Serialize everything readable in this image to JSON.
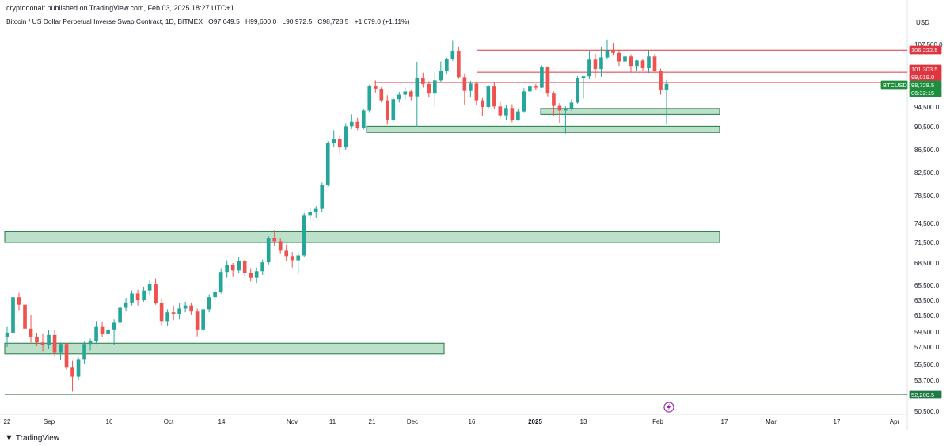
{
  "header": {
    "publisher": "cryptodonalt published on TradingView.com, Feb 03, 2025 18:27 UTC+1",
    "symbol_desc": "Bitcoin / US Dollar Perpetual Inverse Swap Contract, 1D, BITMEX",
    "open_label": "O",
    "open": "97,649.5",
    "high_label": "H",
    "high": "99,600.0",
    "low_label": "L",
    "low": "90,972.5",
    "close_label": "C",
    "close": "98,728.5",
    "change": "+1,079.0 (+1.11%)"
  },
  "footer": {
    "brand": "TradingView"
  },
  "colors": {
    "up": "#26a69a",
    "down": "#ef5350",
    "zone_fill": "#a5d6b7",
    "zone_border": "#1e7a44",
    "resistance": "#e0353f",
    "accent": "#1b5e20"
  },
  "chart_data": {
    "type": "candlestick",
    "currency": "USD",
    "y_ticks": [
      "107,500.0",
      "98,500.0",
      "94,500.0",
      "90,500.0",
      "86,500.0",
      "82,500.0",
      "78,500.0",
      "74,500.0",
      "71,500.0",
      "68,500.0",
      "65,500.0",
      "63,500.0",
      "61,500.0",
      "59,500.0",
      "57,500.0",
      "55,500.0",
      "53,700.0",
      "50,500.0"
    ],
    "x_ticks": [
      "22",
      "Sep",
      "16",
      "Oct",
      "14",
      "Nov",
      "11",
      "21",
      "Dec",
      "16",
      "2025",
      "13",
      "Feb",
      "17",
      "Mar",
      "17",
      "Apr"
    ],
    "price_labels": [
      {
        "text": "106,222.5",
        "kind": "resistance"
      },
      {
        "text": "101,303.5",
        "kind": "resistance"
      },
      {
        "text": "99,019.0",
        "kind": "resistance"
      },
      {
        "text": "BTCUSD.P",
        "kind": "symbol"
      },
      {
        "text": "98,728.5",
        "kind": "current"
      },
      {
        "text": "06:32:15",
        "kind": "current"
      },
      {
        "text": "52,200.5",
        "kind": "support"
      }
    ],
    "horizontal_lines": [
      106222.5,
      101303.5,
      99019.0,
      52200.5
    ],
    "zones": [
      {
        "from": 93000,
        "to": 94200
      },
      {
        "from": 89500,
        "to": 90600
      },
      {
        "from": 71500,
        "to": 73200
      },
      {
        "from": 56700,
        "to": 58000
      }
    ],
    "candles": [
      [
        58800,
        60100,
        57500,
        59400
      ],
      [
        59400,
        64200,
        59000,
        63900
      ],
      [
        63900,
        64500,
        62200,
        62900
      ],
      [
        62900,
        63700,
        59200,
        59900
      ],
      [
        59900,
        61500,
        58100,
        58800
      ],
      [
        58800,
        59400,
        57600,
        58100
      ],
      [
        58100,
        59300,
        57000,
        57800
      ],
      [
        57800,
        59700,
        57300,
        59100
      ],
      [
        59100,
        59800,
        56400,
        56900
      ],
      [
        56900,
        58100,
        56000,
        57900
      ],
      [
        57900,
        58100,
        54900,
        55200
      ],
      [
        55200,
        55900,
        52500,
        54100
      ],
      [
        54100,
        56300,
        53700,
        56100
      ],
      [
        56100,
        58200,
        55600,
        57900
      ],
      [
        57900,
        58600,
        57100,
        58300
      ],
      [
        58300,
        60800,
        57900,
        60100
      ],
      [
        60100,
        60700,
        58800,
        59200
      ],
      [
        59200,
        60100,
        57600,
        59800
      ],
      [
        59800,
        61000,
        57800,
        60600
      ],
      [
        60600,
        62900,
        60200,
        62500
      ],
      [
        62500,
        63800,
        62000,
        63200
      ],
      [
        63200,
        64800,
        62800,
        64400
      ],
      [
        64400,
        64900,
        62800,
        63500
      ],
      [
        63500,
        65300,
        63300,
        64800
      ],
      [
        64800,
        66200,
        64100,
        65600
      ],
      [
        65600,
        66400,
        62900,
        63100
      ],
      [
        63100,
        63600,
        60300,
        60800
      ],
      [
        60800,
        62300,
        60200,
        61900
      ],
      [
        61900,
        62800,
        60900,
        61700
      ],
      [
        61700,
        63100,
        61000,
        62400
      ],
      [
        62400,
        63300,
        61900,
        62800
      ],
      [
        62800,
        63200,
        61500,
        62000
      ],
      [
        62000,
        62400,
        58900,
        59800
      ],
      [
        59800,
        62600,
        59500,
        62300
      ],
      [
        62300,
        64300,
        61900,
        63900
      ],
      [
        63900,
        65000,
        63400,
        64600
      ],
      [
        64600,
        67800,
        64400,
        67300
      ],
      [
        67300,
        68900,
        66500,
        68200
      ],
      [
        68200,
        68500,
        66600,
        67500
      ],
      [
        67500,
        69300,
        67100,
        68800
      ],
      [
        68800,
        69000,
        66800,
        67200
      ],
      [
        67200,
        67800,
        66000,
        66500
      ],
      [
        66500,
        67900,
        65800,
        67400
      ],
      [
        67400,
        69000,
        66900,
        68600
      ],
      [
        68600,
        72500,
        68300,
        72200
      ],
      [
        72200,
        73500,
        71000,
        71700
      ],
      [
        71700,
        72200,
        69800,
        70300
      ],
      [
        70300,
        71200,
        68800,
        69500
      ],
      [
        69500,
        70100,
        67900,
        68900
      ],
      [
        68900,
        70000,
        67000,
        69600
      ],
      [
        69600,
        76000,
        69300,
        75600
      ],
      [
        75600,
        76800,
        74900,
        76200
      ],
      [
        76200,
        77000,
        75300,
        76600
      ],
      [
        76600,
        80800,
        76200,
        80400
      ],
      [
        80400,
        88000,
        80100,
        87600
      ],
      [
        87600,
        89900,
        87000,
        88400
      ],
      [
        88400,
        89100,
        85800,
        86900
      ],
      [
        86900,
        91200,
        86500,
        90600
      ],
      [
        90600,
        93000,
        90100,
        91500
      ],
      [
        91500,
        92300,
        89900,
        90300
      ],
      [
        90300,
        94100,
        90000,
        93800
      ],
      [
        93800,
        98600,
        93300,
        98300
      ],
      [
        98300,
        99500,
        97100,
        97800
      ],
      [
        97800,
        98100,
        95300,
        95700
      ],
      [
        95700,
        96600,
        90900,
        91800
      ],
      [
        91800,
        96200,
        91500,
        95900
      ],
      [
        95900,
        97200,
        95300,
        96700
      ],
      [
        96700,
        98000,
        95800,
        97300
      ],
      [
        97300,
        97600,
        95700,
        96400
      ],
      [
        96400,
        103600,
        90500,
        100000
      ],
      [
        100000,
        101200,
        98000,
        98700
      ],
      [
        98700,
        99300,
        96200,
        96900
      ],
      [
        96900,
        101300,
        94500,
        99500
      ],
      [
        99500,
        103700,
        99000,
        101500
      ],
      [
        101500,
        104500,
        101000,
        104200
      ],
      [
        104200,
        108300,
        103800,
        106100
      ],
      [
        106100,
        107000,
        99800,
        100200
      ],
      [
        100200,
        101000,
        94900,
        97400
      ],
      [
        97400,
        99400,
        96200,
        98800
      ],
      [
        98800,
        99100,
        94800,
        95700
      ],
      [
        95700,
        96100,
        92700,
        94500
      ],
      [
        94500,
        98500,
        94200,
        98200
      ],
      [
        98200,
        99000,
        94100,
        94600
      ],
      [
        94600,
        95400,
        92300,
        92800
      ],
      [
        92800,
        94900,
        91800,
        94300
      ],
      [
        94300,
        95000,
        91400,
        91900
      ],
      [
        91900,
        94200,
        91700,
        93600
      ],
      [
        93600,
        97900,
        93300,
        97300
      ],
      [
        97300,
        98900,
        97000,
        98200
      ],
      [
        98200,
        98700,
        97500,
        98000
      ],
      [
        98000,
        102800,
        97900,
        102400
      ],
      [
        102400,
        102600,
        96400,
        96900
      ],
      [
        96900,
        97300,
        92700,
        94700
      ],
      [
        94700,
        95200,
        91300,
        93800
      ],
      [
        93800,
        94600,
        89300,
        94200
      ],
      [
        94200,
        95900,
        93700,
        95300
      ],
      [
        95300,
        100400,
        95100,
        99900
      ],
      [
        99900,
        100500,
        96000,
        100400
      ],
      [
        100400,
        105900,
        99700,
        104100
      ],
      [
        104100,
        105400,
        99900,
        102000
      ],
      [
        102000,
        107000,
        100300,
        104600
      ],
      [
        104600,
        108600,
        104200,
        106200
      ],
      [
        106200,
        107800,
        105000,
        105600
      ],
      [
        105600,
        106300,
        102700,
        103700
      ],
      [
        103700,
        106100,
        103300,
        104800
      ],
      [
        104800,
        105300,
        101300,
        102700
      ],
      [
        102700,
        104000,
        101600,
        103900
      ],
      [
        103900,
        104300,
        101500,
        102200
      ],
      [
        102200,
        106200,
        101100,
        104800
      ],
      [
        104800,
        105400,
        101200,
        101600
      ],
      [
        101600,
        102100,
        96700,
        97600
      ],
      [
        97649.5,
        99600,
        90972.5,
        98728.5
      ]
    ]
  }
}
